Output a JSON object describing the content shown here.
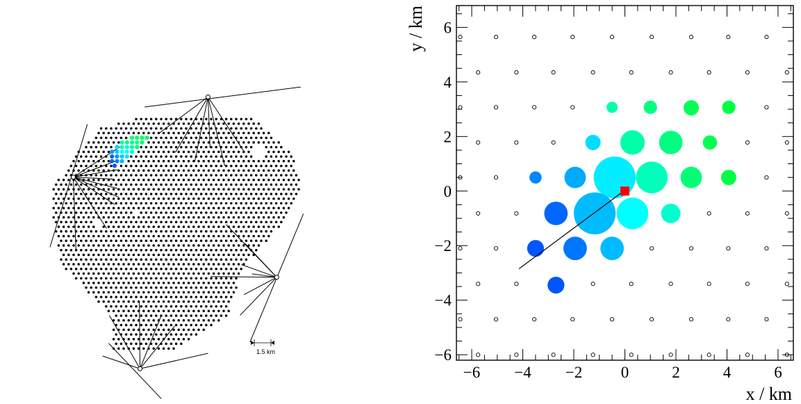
{
  "left_map": {
    "scale_bar_label": "1.5 km",
    "station_color": "#000000",
    "array_spacing_km": 1.5,
    "footprint": [
      [
        -9.2,
        10.0
      ],
      [
        -5.55,
        10.8
      ],
      [
        0.17,
        11.2
      ],
      [
        10.28,
        11.2
      ],
      [
        16.63,
        5.2
      ],
      [
        17.83,
        0.0
      ],
      [
        15.08,
        -5.2
      ],
      [
        9.14,
        -11.8
      ],
      [
        6.88,
        -18.9
      ],
      [
        -1.0,
        -24.0
      ],
      [
        -10.3,
        -24.0
      ],
      [
        -10.29,
        -19.3
      ],
      [
        -18.11,
        -11.3
      ],
      [
        -19.4,
        -4.2
      ],
      [
        -19.38,
        0.1
      ],
      [
        -15.63,
        5.6
      ],
      [
        -11.77,
        9.5
      ]
    ],
    "holes": [
      [
        11.5,
        5.5,
        0.9
      ],
      [
        -12.5,
        -5.0,
        0.7
      ],
      [
        -7.0,
        -3.5,
        0.5
      ]
    ],
    "sites": [
      {
        "name": "site-top",
        "x": 3.9,
        "y": 13.8,
        "line": [
          [
            -5.6,
            12.3
          ],
          [
            17.8,
            15.3
          ]
        ],
        "rays": [
          [
            -3.4,
            8.4
          ],
          [
            -1.0,
            5.5
          ],
          [
            1.9,
            4.1
          ],
          [
            4.2,
            6.2
          ],
          [
            6.4,
            3.5
          ],
          [
            9.2,
            5.8
          ]
        ]
      },
      {
        "name": "site-left",
        "x": -16.3,
        "y": 1.8,
        "line": [
          [
            -14.2,
            9.7
          ],
          [
            -19.8,
            -8.7
          ]
        ],
        "rays": [
          [
            -9.2,
            6.4
          ],
          [
            -9.7,
            4.3
          ],
          [
            -9.7,
            2.9
          ],
          [
            -10.2,
            1.5
          ],
          [
            -9.7,
            0.1
          ],
          [
            -9.5,
            -1.2
          ],
          [
            -10.1,
            -2.3
          ],
          [
            -11.3,
            -5.9
          ],
          [
            -15.9,
            -9.1
          ]
        ]
      },
      {
        "name": "site-right",
        "x": 14.2,
        "y": -13.2,
        "line": [
          [
            18.2,
            -3.7
          ],
          [
            10.2,
            -22.9
          ]
        ],
        "rays": [
          [
            6.6,
            -5.3
          ],
          [
            9.4,
            -8.1
          ],
          [
            8.9,
            -11.3
          ],
          [
            10.5,
            -12.7
          ],
          [
            4.3,
            -13.1
          ],
          [
            9.3,
            -15.8
          ],
          [
            8.7,
            -18.9
          ]
        ]
      },
      {
        "name": "site-bottom",
        "x": -6.3,
        "y": -26.9,
        "line": [
          [
            -11.0,
            -23.1
          ],
          [
            -3.1,
            -31.4
          ]
        ],
        "rays": [
          [
            -10.9,
            -18.9
          ],
          [
            -6.4,
            -16.8
          ],
          [
            -3.1,
            -18.9
          ],
          [
            -1.1,
            -20.5
          ],
          [
            3.9,
            -24.6
          ],
          [
            -11.9,
            -25.0
          ]
        ]
      }
    ],
    "event_hits": [
      {
        "x": -7.5,
        "y": 7.7,
        "color": "#00ff80"
      },
      {
        "x": -6.75,
        "y": 7.7,
        "color": "#00ff66"
      },
      {
        "x": -6.0,
        "y": 7.7,
        "color": "#00ff66"
      },
      {
        "x": -5.25,
        "y": 7.7,
        "color": "#00ff66"
      },
      {
        "x": -9.0,
        "y": 7.0,
        "color": "#00ffb3"
      },
      {
        "x": -8.25,
        "y": 7.0,
        "color": "#00ff80"
      },
      {
        "x": -7.5,
        "y": 7.0,
        "color": "#00ff80"
      },
      {
        "x": -6.75,
        "y": 7.0,
        "color": "#00ff99"
      },
      {
        "x": -6.0,
        "y": 7.0,
        "color": "#00ff66"
      },
      {
        "x": -9.75,
        "y": 6.3,
        "color": "#00d9ff"
      },
      {
        "x": -9.0,
        "y": 6.3,
        "color": "#00ffcc"
      },
      {
        "x": -8.25,
        "y": 6.3,
        "color": "#00ffcc"
      },
      {
        "x": -7.5,
        "y": 6.3,
        "color": "#00ff99"
      },
      {
        "x": -6.75,
        "y": 6.3,
        "color": "#00ff66"
      },
      {
        "x": -10.5,
        "y": 5.6,
        "color": "#0099ff"
      },
      {
        "x": -9.75,
        "y": 5.6,
        "color": "#00ccff"
      },
      {
        "x": -9.0,
        "y": 5.6,
        "color": "#00ffff"
      },
      {
        "x": -8.25,
        "y": 5.6,
        "color": "#00ffff"
      },
      {
        "x": -7.5,
        "y": 5.6,
        "color": "#00ffcc"
      },
      {
        "x": -10.5,
        "y": 4.9,
        "color": "#0066ff"
      },
      {
        "x": -9.75,
        "y": 4.9,
        "color": "#0099ff"
      },
      {
        "x": -9.0,
        "y": 4.9,
        "color": "#00ccff"
      },
      {
        "x": -8.25,
        "y": 4.9,
        "color": "#00e6ff"
      },
      {
        "x": -10.5,
        "y": 4.2,
        "color": "#0066ff"
      },
      {
        "x": -9.75,
        "y": 4.2,
        "color": "#0080ff"
      },
      {
        "x": -9.0,
        "y": 4.2,
        "color": "#00b3ff"
      },
      {
        "x": -10.1,
        "y": 3.5,
        "color": "#0055ff"
      }
    ]
  },
  "chart_data": {
    "type": "scatter",
    "title": "",
    "xlabel": "x / km",
    "ylabel": "y / km",
    "xlim": [
      -6.6,
      6.6
    ],
    "ylim": [
      -6.2,
      6.8
    ],
    "xticks": [
      -6,
      -4,
      -2,
      0,
      2,
      4,
      6
    ],
    "yticks": [
      -6,
      -4,
      -2,
      0,
      2,
      4,
      6
    ],
    "grid": false,
    "legend": "none",
    "core_position": {
      "x": 0.0,
      "y": 0.0,
      "color": "#ff0000"
    },
    "shower_axis": [
      [
        -4.15,
        -2.85
      ],
      [
        -0.05,
        0.0
      ]
    ],
    "triggered_stations": [
      {
        "x": -0.5,
        "y": 3.07,
        "r": 0.22,
        "color": "#00ffaa"
      },
      {
        "x": 1.0,
        "y": 3.07,
        "r": 0.26,
        "color": "#00ff7f"
      },
      {
        "x": 2.6,
        "y": 3.05,
        "r": 0.3,
        "color": "#00ff55"
      },
      {
        "x": 4.07,
        "y": 3.07,
        "r": 0.26,
        "color": "#00ff44"
      },
      {
        "x": -1.25,
        "y": 1.78,
        "r": 0.3,
        "color": "#00ddff"
      },
      {
        "x": 0.3,
        "y": 1.78,
        "r": 0.48,
        "color": "#00ffaa"
      },
      {
        "x": 1.8,
        "y": 1.78,
        "r": 0.46,
        "color": "#00ff80"
      },
      {
        "x": 3.33,
        "y": 1.78,
        "r": 0.28,
        "color": "#00ff55"
      },
      {
        "x": -3.5,
        "y": 0.5,
        "r": 0.24,
        "color": "#0088ff"
      },
      {
        "x": -1.95,
        "y": 0.5,
        "r": 0.42,
        "color": "#00aaff"
      },
      {
        "x": -0.4,
        "y": 0.5,
        "r": 0.82,
        "color": "#00eeff"
      },
      {
        "x": 1.05,
        "y": 0.5,
        "r": 0.62,
        "color": "#00ffbb"
      },
      {
        "x": 2.6,
        "y": 0.5,
        "r": 0.42,
        "color": "#00ff77"
      },
      {
        "x": 4.07,
        "y": 0.5,
        "r": 0.3,
        "color": "#00ff44"
      },
      {
        "x": -2.7,
        "y": -0.82,
        "r": 0.46,
        "color": "#0066ff"
      },
      {
        "x": -1.18,
        "y": -0.82,
        "r": 0.82,
        "color": "#00bbff"
      },
      {
        "x": 0.3,
        "y": -0.82,
        "r": 0.62,
        "color": "#00ffff"
      },
      {
        "x": 1.8,
        "y": -0.82,
        "r": 0.38,
        "color": "#00ffcc"
      },
      {
        "x": -3.5,
        "y": -2.1,
        "r": 0.33,
        "color": "#0055ff"
      },
      {
        "x": -1.95,
        "y": -2.1,
        "r": 0.46,
        "color": "#0077ff"
      },
      {
        "x": -0.5,
        "y": -2.1,
        "r": 0.46,
        "color": "#00bbff"
      },
      {
        "x": -2.7,
        "y": -3.45,
        "r": 0.33,
        "color": "#0055ff"
      }
    ],
    "silent_stations": {
      "rows": [
        {
          "y": 5.65,
          "x": [
            -6.45,
            -5.05,
            -3.55,
            -2.05,
            -0.5,
            1.05,
            2.6,
            4.05,
            5.55
          ]
        },
        {
          "y": 4.35,
          "x": [
            -5.75,
            -4.25,
            -2.8,
            -1.25,
            0.25,
            1.8,
            3.3,
            4.8,
            6.35
          ]
        },
        {
          "y": 3.07,
          "x": [
            -6.45,
            -5.05,
            -3.55,
            -2.05,
            5.55
          ]
        },
        {
          "y": 1.78,
          "x": [
            -5.75,
            -4.25,
            -2.8,
            4.8,
            6.35
          ]
        },
        {
          "y": 0.5,
          "x": [
            -6.45,
            -5.05,
            5.55
          ]
        },
        {
          "y": -0.82,
          "x": [
            -5.75,
            -4.25,
            3.3,
            4.8,
            6.35
          ]
        },
        {
          "y": -2.1,
          "x": [
            -6.45,
            -5.05,
            1.05,
            2.6,
            4.05,
            5.55
          ]
        },
        {
          "y": -3.4,
          "x": [
            -5.75,
            -4.25,
            -1.25,
            0.25,
            1.8,
            3.3,
            4.8,
            6.35
          ]
        },
        {
          "y": -4.7,
          "x": [
            -6.45,
            -5.05,
            -3.55,
            -2.05,
            -0.5,
            1.05,
            2.6,
            4.05,
            5.55
          ]
        },
        {
          "y": -6.0,
          "x": [
            -5.75,
            -4.25,
            -2.8,
            -1.25,
            0.25,
            1.8,
            3.3,
            4.8,
            6.35
          ]
        }
      ]
    }
  }
}
